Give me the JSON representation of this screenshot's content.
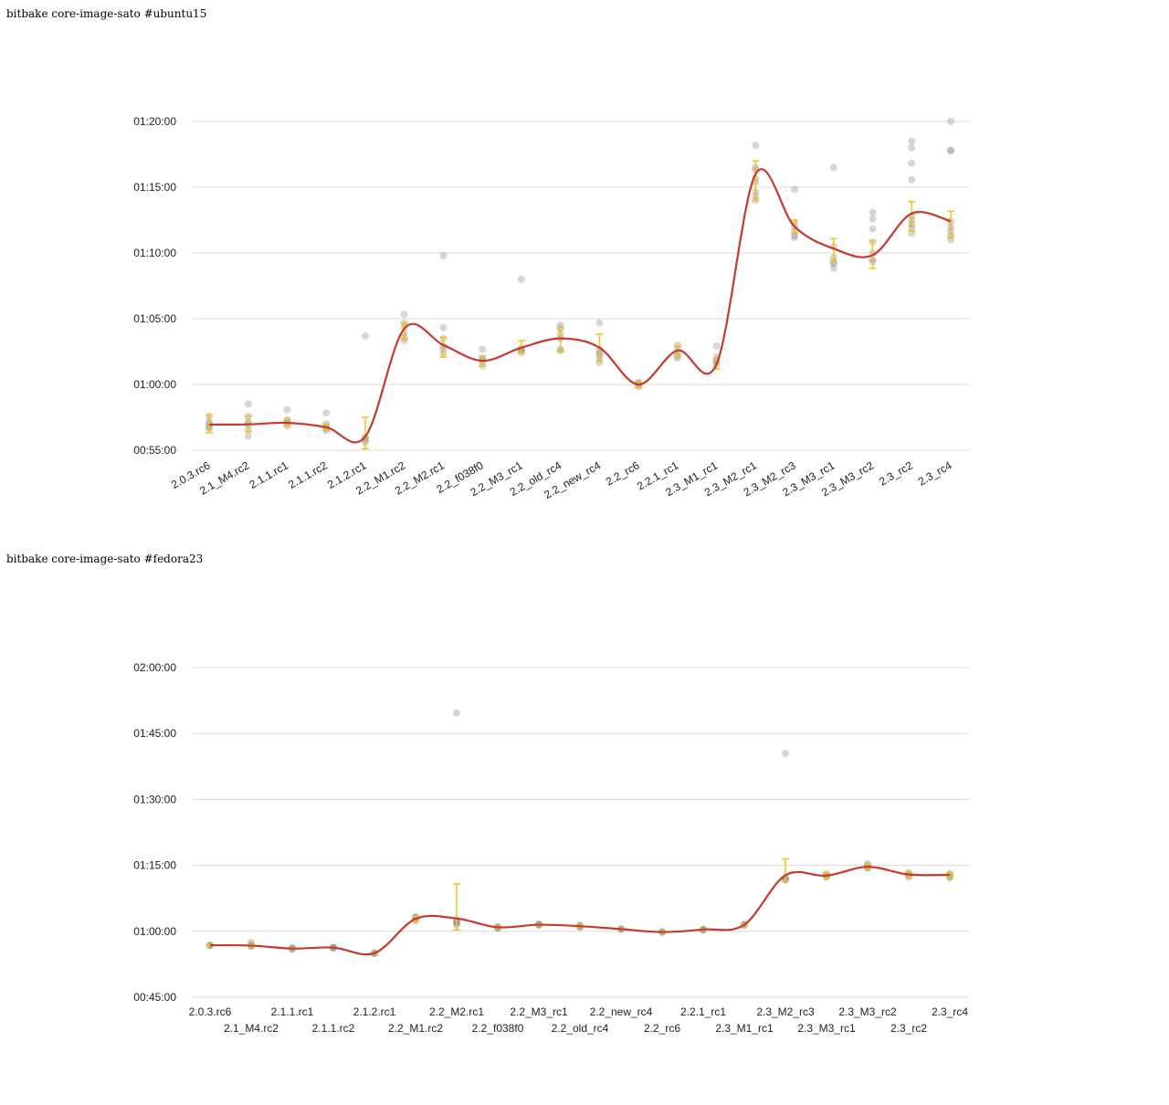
{
  "chart_data": [
    {
      "type": "line",
      "title": "bitbake core-image-sato #ubuntu15",
      "xlabel": "",
      "ylabel": "",
      "categories": [
        "2.0.3.rc6",
        "2.1_M4.rc2",
        "2.1.1.rc1",
        "2.1.1.rc2",
        "2.1.2.rc1",
        "2.2_M1.rc2",
        "2.2_M2.rc1",
        "2.2_f038f0",
        "2.2_M3_rc1",
        "2.2_old_rc4",
        "2.2_new_rc4",
        "2.2_rc6",
        "2.2.1_rc1",
        "2.3_M1_rc1",
        "2.3_M2_rc1",
        "2.3_M2_rc3",
        "2.3_M3_rc1",
        "2.3_M3_rc2",
        "2.3_rc2",
        "2.3_rc4"
      ],
      "y_ticks": [
        "00:55:00",
        "01:00:00",
        "01:05:00",
        "01:10:00",
        "01:15:00",
        "01:20:00"
      ],
      "ylim_seconds": [
        3300,
        4800
      ],
      "y_tick_seconds": [
        3300,
        3600,
        3900,
        4200,
        4500,
        4800
      ],
      "x_label_rotation": -30,
      "grid": true,
      "mean_seconds": [
        3417,
        3418,
        3425,
        3405,
        3362,
        3855,
        3780,
        3708,
        3768,
        3810,
        3768,
        3600,
        3755,
        3693,
        4560,
        4320,
        4220,
        4190,
        4380,
        4345
      ],
      "error_low_seconds": [
        3380,
        3385,
        3410,
        3390,
        3307,
        3810,
        3725,
        3685,
        3745,
        3750,
        3705,
        3585,
        3730,
        3670,
        4440,
        4290,
        4160,
        4130,
        4300,
        4275
      ],
      "error_high_seconds": [
        3460,
        3455,
        3440,
        3420,
        3450,
        3880,
        3815,
        3730,
        3800,
        3855,
        3830,
        3610,
        3775,
        3715,
        4620,
        4350,
        4265,
        4255,
        4435,
        4390
      ],
      "samples_seconds": [
        [
          3405,
          3420,
          3455,
          3430,
          3400
        ],
        [
          3510,
          3430,
          3365,
          3395,
          3455,
          3420
        ],
        [
          3485,
          3440,
          3410,
          3425,
          3430
        ],
        [
          3470,
          3420,
          3400,
          3390,
          3405
        ],
        [
          3822,
          3360,
          3345,
          3335,
          3355
        ],
        [
          3920,
          3880,
          3860,
          3800,
          3835,
          3815
        ],
        [
          4188,
          3860,
          3810,
          3760,
          3740,
          3775
        ],
        [
          3760,
          3715,
          3685,
          3705,
          3720
        ],
        [
          4080,
          3765,
          3745,
          3760,
          3755
        ],
        [
          3870,
          3855,
          3810,
          3755,
          3760,
          3830
        ],
        [
          3880,
          3745,
          3720,
          3700,
          3735,
          3760
        ],
        [
          3610,
          3590,
          3600,
          3605
        ],
        [
          3780,
          3760,
          3730,
          3720,
          3745
        ],
        [
          3775,
          3725,
          3700,
          3690,
          3710
        ],
        [
          4690,
          4590,
          4580,
          4540,
          4520,
          4480,
          4440,
          4460
        ],
        [
          4490,
          4340,
          4320,
          4300,
          4280,
          4270
        ],
        [
          4590,
          4230,
          4180,
          4160,
          4150,
          4130
        ],
        [
          4385,
          4355,
          4310,
          4250,
          4200,
          4170,
          4160
        ],
        [
          4710,
          4680,
          4610,
          4535,
          4370,
          4350,
          4315,
          4290,
          4330
        ],
        [
          4800,
          4665,
          4670,
          4345,
          4300,
          4280,
          4260,
          4320
        ]
      ]
    },
    {
      "type": "line",
      "title": "bitbake core-image-sato #fedora23",
      "xlabel": "",
      "ylabel": "",
      "categories": [
        "2.0.3.rc6",
        "2.1_M4.rc2",
        "2.1.1.rc1",
        "2.1.1.rc2",
        "2.1.2.rc1",
        "2.2_M1.rc2",
        "2.2_M2.rc1",
        "2.2_f038f0",
        "2.2_M3_rc1",
        "2.2_old_rc4",
        "2.2_new_rc4",
        "2.2_rc6",
        "2.2.1_rc1",
        "2.3_M1_rc1",
        "2.3_M2_rc3",
        "2.3_M3_rc1",
        "2.3_M3_rc2",
        "2.3_rc2",
        "2.3_rc4"
      ],
      "y_ticks": [
        "00:45:00",
        "01:00:00",
        "01:15:00",
        "01:30:00",
        "01:45:00",
        "02:00:00"
      ],
      "ylim_seconds": [
        2700,
        7200
      ],
      "y_tick_seconds": [
        2700,
        3600,
        4500,
        5400,
        6300,
        7200
      ],
      "x_label_rotation": 0,
      "grid": true,
      "mean_seconds": [
        3410,
        3405,
        3365,
        3378,
        3302,
        3770,
        3775,
        3655,
        3690,
        3670,
        3630,
        3590,
        3625,
        3690,
        4365,
        4360,
        4480,
        4375,
        4370
      ],
      "error_low_seconds": [
        3400,
        3390,
        3355,
        3370,
        3295,
        3740,
        3620,
        3640,
        3680,
        3655,
        3620,
        3580,
        3615,
        3680,
        4290,
        4330,
        4460,
        4340,
        4345
      ],
      "error_high_seconds": [
        3420,
        3420,
        3375,
        3385,
        3310,
        3800,
        4245,
        3670,
        3700,
        3685,
        3640,
        3600,
        3635,
        3700,
        4590,
        4400,
        4515,
        4410,
        4395
      ],
      "samples_seconds": [
        [
          3410,
          3408,
          3405
        ],
        [
          3450,
          3415,
          3395,
          3400
        ],
        [
          3380,
          3360,
          3355,
          3370
        ],
        [
          3380,
          3370,
          3375,
          3385
        ],
        [
          3310,
          3298,
          3295
        ],
        [
          3800,
          3790,
          3760,
          3745,
          3780
        ],
        [
          6580,
          3760,
          3725,
          3705,
          3690,
          3740
        ],
        [
          3665,
          3655,
          3640,
          3650
        ],
        [
          3700,
          3690,
          3680,
          3695
        ],
        [
          3685,
          3675,
          3660,
          3655
        ],
        [
          3635,
          3625,
          3630
        ],
        [
          3595,
          3590,
          3585
        ],
        [
          3630,
          3620,
          3615,
          3625
        ],
        [
          3700,
          3690,
          3680
        ],
        [
          6030,
          4330,
          4310,
          4295,
          4320
        ],
        [
          4385,
          4360,
          4340,
          4350
        ],
        [
          4520,
          4500,
          4480,
          4470,
          4460
        ],
        [
          4400,
          4380,
          4360,
          4340
        ],
        [
          4390,
          4370,
          4345,
          4330
        ]
      ]
    }
  ],
  "colors": {
    "trend_line": "#c8382c",
    "error_bar": "#f2c414",
    "sample_dot": "#8a8a8a",
    "grid": "#d9d9d9"
  }
}
